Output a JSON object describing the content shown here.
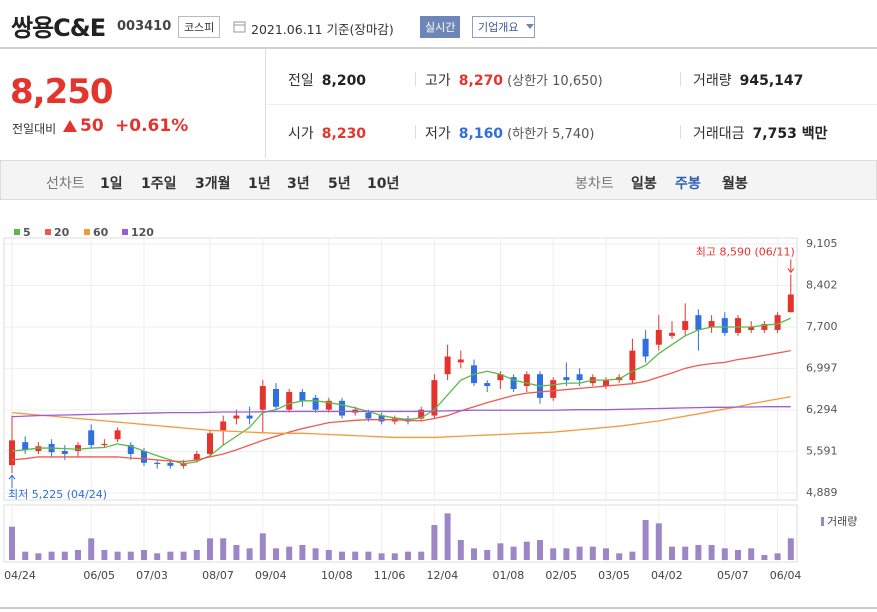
{
  "header": {
    "title": "쌍용C&E",
    "code": "003410",
    "market": "코스피",
    "date": "2021.06.11 기준(장마감)",
    "realtime": "실시간",
    "company": "기업개요"
  },
  "quote": {
    "price": "8,250",
    "change_label": "전일대비",
    "change": "50",
    "change_pct": "+0.61%"
  },
  "stats": [
    {
      "label": "전일",
      "value": "8,200"
    },
    {
      "label": "고가",
      "value": "8,270",
      "note": "(상한가 10,650)"
    },
    {
      "label": "거래량",
      "value": "945,147"
    },
    {
      "label": "시가",
      "value": "8,230"
    },
    {
      "label": "저가",
      "value": "8,160",
      "note": "(하한가 5,740)"
    },
    {
      "label": "거래대금",
      "value": "7,753",
      "unit": "백만"
    }
  ],
  "tabs": {
    "line_label": "선차트",
    "line": [
      "1일",
      "1주일",
      "3개월",
      "1년",
      "3년",
      "5년",
      "10년"
    ],
    "candle_label": "봉차트",
    "candle": [
      "일봉",
      "주봉",
      "월봉"
    ],
    "active": "주봉"
  },
  "chart_data": {
    "type": "candlestick",
    "categories": [
      "04/24",
      null,
      null,
      null,
      null,
      null,
      "06/05",
      null,
      null,
      null,
      "07/03",
      null,
      null,
      null,
      null,
      "08/07",
      null,
      null,
      null,
      "09/04",
      null,
      null,
      null,
      null,
      "10/08",
      null,
      null,
      null,
      "11/06",
      null,
      null,
      null,
      "12/04",
      null,
      null,
      null,
      null,
      "01/08",
      null,
      null,
      null,
      "02/05",
      null,
      null,
      null,
      "03/05",
      null,
      null,
      null,
      "04/02",
      null,
      null,
      null,
      null,
      "05/07",
      null,
      null,
      null,
      "06/04",
      null
    ],
    "open": [
      5360,
      5750,
      5600,
      5720,
      5600,
      5600,
      5950,
      5700,
      5800,
      5700,
      5600,
      5400,
      5400,
      5350,
      5450,
      5550,
      5950,
      6150,
      6200,
      6300,
      6650,
      6300,
      6600,
      6500,
      6300,
      6450,
      6250,
      6250,
      6200,
      6100,
      6150,
      6150,
      6200,
      6900,
      7100,
      7050,
      6750,
      6800,
      6850,
      6700,
      6900,
      6500,
      6850,
      6900,
      6750,
      6700,
      6800,
      6800,
      7500,
      7400,
      7550,
      7650,
      7900,
      7700,
      7850,
      7600,
      7650,
      7650,
      7650,
      7950
    ],
    "high": [
      6200,
      5850,
      5750,
      5800,
      5700,
      5750,
      6050,
      5800,
      6000,
      5750,
      5650,
      5450,
      5450,
      5450,
      5600,
      5950,
      6200,
      6300,
      6350,
      6800,
      6750,
      6650,
      6650,
      6550,
      6500,
      6500,
      6350,
      6300,
      6250,
      6200,
      6200,
      6350,
      6900,
      7400,
      7300,
      7150,
      6800,
      6950,
      6900,
      6950,
      6950,
      6850,
      7100,
      7000,
      6900,
      6850,
      6900,
      7500,
      7650,
      7900,
      7800,
      8100,
      8000,
      7900,
      7950,
      7900,
      7800,
      7800,
      7950,
      8590
    ],
    "low": [
      5225,
      5550,
      5550,
      5500,
      5450,
      5500,
      5650,
      5650,
      5750,
      5450,
      5350,
      5300,
      5300,
      5300,
      5400,
      5500,
      5700,
      6050,
      6050,
      5900,
      6300,
      6250,
      6350,
      6250,
      6250,
      6150,
      6200,
      6100,
      6050,
      6050,
      6050,
      6100,
      6150,
      6800,
      7000,
      6700,
      6600,
      6650,
      6600,
      6600,
      6400,
      6450,
      6700,
      6700,
      6700,
      6650,
      6750,
      6750,
      7100,
      7300,
      7500,
      7550,
      7300,
      7600,
      7550,
      7550,
      7600,
      7600,
      7600,
      7950
    ],
    "close": [
      5780,
      5620,
      5680,
      5580,
      5550,
      5700,
      5700,
      5720,
      5950,
      5550,
      5400,
      5380,
      5350,
      5400,
      5550,
      5900,
      6100,
      6200,
      6150,
      6700,
      6350,
      6600,
      6450,
      6300,
      6450,
      6200,
      6300,
      6150,
      6100,
      6150,
      6100,
      6300,
      6800,
      7200,
      7150,
      6750,
      6700,
      6900,
      6650,
      6900,
      6500,
      6800,
      6800,
      6800,
      6850,
      6800,
      6850,
      7300,
      7200,
      7650,
      7600,
      7800,
      7650,
      7800,
      7600,
      7850,
      7700,
      7750,
      7900,
      8250
    ],
    "up_color": "#e4342e",
    "down_color": "#2f6fde",
    "series": [
      {
        "name": "5",
        "color": "#5bb94a",
        "values": [
          5600,
          5620,
          5650,
          5650,
          5640,
          5630,
          5650,
          5660,
          5720,
          5680,
          5600,
          5520,
          5450,
          5380,
          5420,
          5520,
          5700,
          5850,
          6000,
          6250,
          6300,
          6400,
          6450,
          6450,
          6420,
          6380,
          6330,
          6270,
          6200,
          6160,
          6130,
          6160,
          6300,
          6550,
          6800,
          6900,
          6950,
          6900,
          6800,
          6750,
          6700,
          6720,
          6750,
          6750,
          6800,
          6800,
          6820,
          6950,
          7050,
          7250,
          7400,
          7550,
          7650,
          7700,
          7700,
          7700,
          7700,
          7730,
          7750,
          7850
        ]
      },
      {
        "name": "20",
        "color": "#ef5a4f",
        "values": [
          5450,
          5470,
          5500,
          5500,
          5500,
          5500,
          5500,
          5500,
          5500,
          5480,
          5470,
          5450,
          5430,
          5420,
          5450,
          5500,
          5550,
          5620,
          5700,
          5780,
          5850,
          5920,
          5980,
          6030,
          6080,
          6100,
          6120,
          6130,
          6130,
          6130,
          6120,
          6110,
          6150,
          6200,
          6280,
          6350,
          6420,
          6480,
          6540,
          6580,
          6600,
          6620,
          6640,
          6660,
          6680,
          6700,
          6720,
          6740,
          6780,
          6850,
          6920,
          7000,
          7050,
          7080,
          7100,
          7150,
          7180,
          7220,
          7260,
          7300
        ]
      },
      {
        "name": "60",
        "color": "#f59a3c",
        "values": [
          6250,
          6230,
          6210,
          6190,
          6170,
          6150,
          6130,
          6110,
          6090,
          6070,
          6050,
          6030,
          6010,
          5990,
          5970,
          5950,
          5940,
          5930,
          5920,
          5910,
          5900,
          5900,
          5900,
          5890,
          5880,
          5870,
          5860,
          5850,
          5840,
          5830,
          5830,
          5830,
          5830,
          5840,
          5850,
          5860,
          5870,
          5880,
          5890,
          5900,
          5910,
          5920,
          5940,
          5960,
          5980,
          6000,
          6020,
          6050,
          6080,
          6110,
          6150,
          6190,
          6230,
          6270,
          6310,
          6350,
          6400,
          6440,
          6480,
          6520
        ]
      },
      {
        "name": "120",
        "color": "#9b5fd0",
        "values": [
          6180,
          6190,
          6200,
          6205,
          6210,
          6215,
          6220,
          6225,
          6230,
          6235,
          6240,
          6245,
          6250,
          6250,
          6250,
          6255,
          6260,
          6260,
          6260,
          6265,
          6270,
          6270,
          6270,
          6270,
          6270,
          6270,
          6270,
          6270,
          6270,
          6270,
          6270,
          6270,
          6275,
          6280,
          6285,
          6290,
          6290,
          6290,
          6290,
          6290,
          6290,
          6290,
          6295,
          6300,
          6300,
          6300,
          6305,
          6310,
          6315,
          6320,
          6325,
          6330,
          6335,
          6340,
          6340,
          6345,
          6345,
          6350,
          6350,
          6350
        ]
      }
    ],
    "volume": [
      2000000,
      500000,
      400000,
      500000,
      500000,
      600000,
      1300000,
      600000,
      500000,
      500000,
      600000,
      400000,
      500000,
      500000,
      600000,
      1300000,
      1300000,
      900000,
      700000,
      1600000,
      700000,
      800000,
      900000,
      700000,
      600000,
      500000,
      500000,
      500000,
      400000,
      400000,
      500000,
      500000,
      2100000,
      2800000,
      1200000,
      700000,
      600000,
      1000000,
      800000,
      1100000,
      1200000,
      700000,
      700000,
      800000,
      800000,
      700000,
      400000,
      500000,
      2400000,
      2200000,
      800000,
      800000,
      900000,
      900000,
      700000,
      600000,
      700000,
      300000,
      400000,
      1300000
    ],
    "volume_lim": [
      0,
      3000000
    ],
    "volume_color": "#9c86c6",
    "volume_label": "거래량",
    "ylim": [
      4889,
      9105
    ],
    "yticks": [
      {
        "value": 4889,
        "label": "4,889"
      },
      {
        "value": 5591,
        "label": "5,591"
      },
      {
        "value": 6294,
        "label": "6,294"
      },
      {
        "value": 6997,
        "label": "6,997"
      },
      {
        "value": 7700,
        "label": "7,700"
      },
      {
        "value": 8402,
        "label": "8,402"
      },
      {
        "value": 9105,
        "label": "9,105"
      }
    ],
    "grid": true,
    "annotations": [
      {
        "text": "최고 8,590 (06/11)",
        "color": "#e4342e"
      },
      {
        "text": "최저 5,225 (04/24)",
        "color": "#2f6fde"
      }
    ]
  }
}
